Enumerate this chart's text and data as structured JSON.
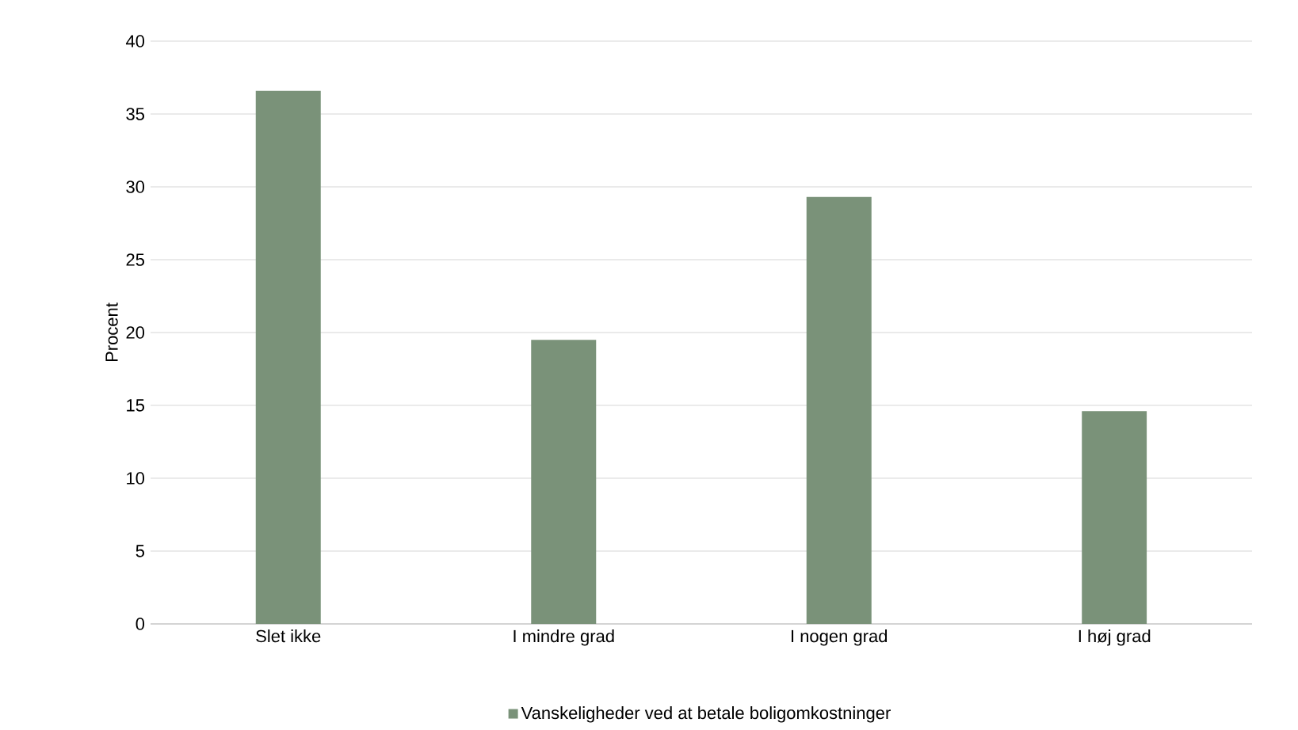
{
  "chart_data": {
    "type": "bar",
    "ylabel": "Procent",
    "categories": [
      "Slet ikke",
      "I mindre grad",
      "I nogen grad",
      "I høj grad"
    ],
    "series": [
      {
        "name": "Vanskeligheder ved at betale boligomkostninger",
        "color": "#7a9279",
        "values": [
          36.6,
          19.5,
          29.3,
          14.6
        ]
      }
    ],
    "ylim": [
      0,
      40
    ],
    "yticks": [
      0,
      5,
      10,
      15,
      20,
      25,
      30,
      35,
      40
    ],
    "grid": "y",
    "legend": "bottom"
  }
}
